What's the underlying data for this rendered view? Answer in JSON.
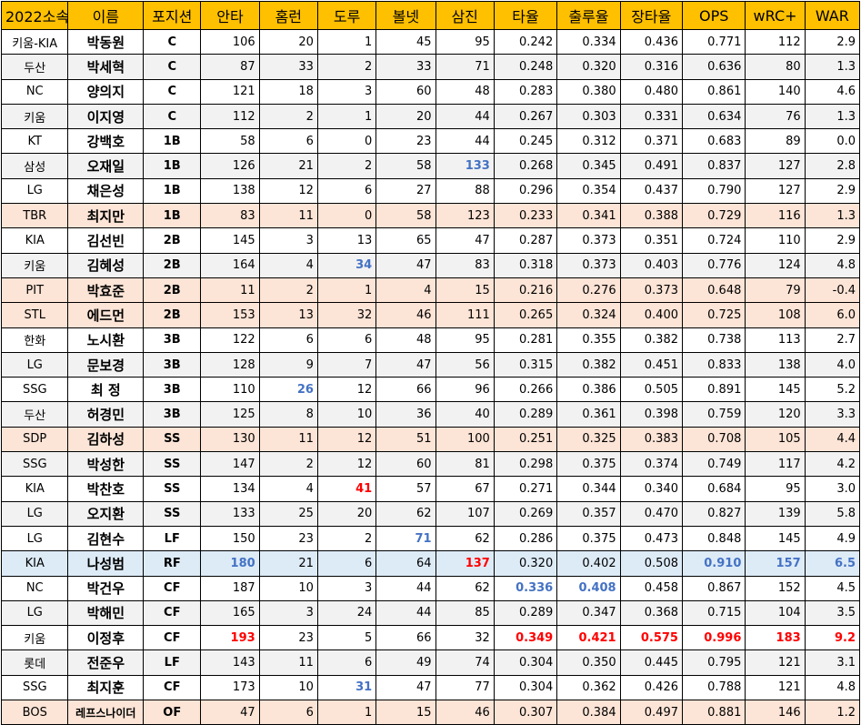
{
  "colors": {
    "header_bg": "#ffc000",
    "white": "#ffffff",
    "gray": "#f2f2f2",
    "pink": "#fce4d6",
    "blue_row": "#ddebf7",
    "blue_text": "#4472c4",
    "red_text": "#ff0000"
  },
  "headers": [
    "2022소속",
    "이름",
    "포지션",
    "안타",
    "홈런",
    "도루",
    "볼넷",
    "삼진",
    "타율",
    "출루율",
    "장타율",
    "OPS",
    "wRC+",
    "WAR"
  ],
  "rows": [
    {
      "bg": "white",
      "cells": [
        "키움-KIA",
        "박동원",
        "C",
        "106",
        "20",
        "1",
        "45",
        "95",
        "0.242",
        "0.334",
        "0.436",
        "0.771",
        "112",
        "2.9"
      ],
      "hl": {}
    },
    {
      "bg": "gray",
      "cells": [
        "두산",
        "박세혁",
        "C",
        "87",
        "33",
        "2",
        "33",
        "71",
        "0.248",
        "0.320",
        "0.316",
        "0.636",
        "80",
        "1.3"
      ],
      "hl": {}
    },
    {
      "bg": "white",
      "cells": [
        "NC",
        "양의지",
        "C",
        "121",
        "18",
        "3",
        "60",
        "48",
        "0.283",
        "0.380",
        "0.480",
        "0.861",
        "140",
        "4.6"
      ],
      "hl": {}
    },
    {
      "bg": "gray",
      "cells": [
        "키움",
        "이지영",
        "C",
        "112",
        "2",
        "1",
        "20",
        "44",
        "0.267",
        "0.303",
        "0.331",
        "0.634",
        "76",
        "1.3"
      ],
      "hl": {}
    },
    {
      "bg": "white",
      "cells": [
        "KT",
        "강백호",
        "1B",
        "58",
        "6",
        "0",
        "23",
        "44",
        "0.245",
        "0.312",
        "0.371",
        "0.683",
        "89",
        "0.0"
      ],
      "hl": {}
    },
    {
      "bg": "gray",
      "cells": [
        "삼성",
        "오재일",
        "1B",
        "126",
        "21",
        "2",
        "58",
        "133",
        "0.268",
        "0.345",
        "0.491",
        "0.837",
        "127",
        "2.8"
      ],
      "hl": {
        "7": "blue"
      }
    },
    {
      "bg": "white",
      "cells": [
        "LG",
        "채은성",
        "1B",
        "138",
        "12",
        "6",
        "27",
        "88",
        "0.296",
        "0.354",
        "0.437",
        "0.790",
        "127",
        "2.9"
      ],
      "hl": {}
    },
    {
      "bg": "pink",
      "cells": [
        "TBR",
        "최지만",
        "1B",
        "83",
        "11",
        "0",
        "58",
        "123",
        "0.233",
        "0.341",
        "0.388",
        "0.729",
        "116",
        "1.3"
      ],
      "hl": {}
    },
    {
      "bg": "white",
      "cells": [
        "KIA",
        "김선빈",
        "2B",
        "145",
        "3",
        "13",
        "65",
        "47",
        "0.287",
        "0.373",
        "0.351",
        "0.724",
        "110",
        "2.9"
      ],
      "hl": {}
    },
    {
      "bg": "gray",
      "cells": [
        "키움",
        "김혜성",
        "2B",
        "164",
        "4",
        "34",
        "47",
        "83",
        "0.318",
        "0.373",
        "0.403",
        "0.776",
        "124",
        "4.8"
      ],
      "hl": {
        "5": "blue"
      }
    },
    {
      "bg": "pink",
      "cells": [
        "PIT",
        "박효준",
        "2B",
        "11",
        "2",
        "1",
        "4",
        "15",
        "0.216",
        "0.276",
        "0.373",
        "0.648",
        "79",
        "-0.4"
      ],
      "hl": {}
    },
    {
      "bg": "pink",
      "cells": [
        "STL",
        "에드먼",
        "2B",
        "153",
        "13",
        "32",
        "46",
        "111",
        "0.265",
        "0.324",
        "0.400",
        "0.725",
        "108",
        "6.0"
      ],
      "hl": {}
    },
    {
      "bg": "white",
      "cells": [
        "한화",
        "노시환",
        "3B",
        "122",
        "6",
        "6",
        "48",
        "95",
        "0.281",
        "0.355",
        "0.382",
        "0.738",
        "113",
        "2.7"
      ],
      "hl": {}
    },
    {
      "bg": "gray",
      "cells": [
        "LG",
        "문보경",
        "3B",
        "128",
        "9",
        "7",
        "47",
        "56",
        "0.315",
        "0.382",
        "0.451",
        "0.833",
        "138",
        "4.0"
      ],
      "hl": {}
    },
    {
      "bg": "white",
      "cells": [
        "SSG",
        "최 정",
        "3B",
        "110",
        "26",
        "12",
        "66",
        "96",
        "0.266",
        "0.386",
        "0.505",
        "0.891",
        "145",
        "5.2"
      ],
      "hl": {
        "4": "blue"
      }
    },
    {
      "bg": "gray",
      "cells": [
        "두산",
        "허경민",
        "3B",
        "125",
        "8",
        "10",
        "36",
        "40",
        "0.289",
        "0.361",
        "0.398",
        "0.759",
        "120",
        "3.3"
      ],
      "hl": {}
    },
    {
      "bg": "pink",
      "cells": [
        "SDP",
        "김하성",
        "SS",
        "130",
        "11",
        "12",
        "51",
        "100",
        "0.251",
        "0.325",
        "0.383",
        "0.708",
        "105",
        "4.4"
      ],
      "hl": {}
    },
    {
      "bg": "gray",
      "cells": [
        "SSG",
        "박성한",
        "SS",
        "147",
        "2",
        "12",
        "60",
        "81",
        "0.298",
        "0.375",
        "0.374",
        "0.749",
        "117",
        "4.2"
      ],
      "hl": {}
    },
    {
      "bg": "white",
      "cells": [
        "KIA",
        "박찬호",
        "SS",
        "134",
        "4",
        "41",
        "57",
        "67",
        "0.271",
        "0.344",
        "0.340",
        "0.684",
        "95",
        "3.0"
      ],
      "hl": {
        "5": "red"
      }
    },
    {
      "bg": "gray",
      "cells": [
        "LG",
        "오지환",
        "SS",
        "133",
        "25",
        "20",
        "62",
        "107",
        "0.269",
        "0.357",
        "0.470",
        "0.827",
        "139",
        "5.8"
      ],
      "hl": {}
    },
    {
      "bg": "white",
      "cells": [
        "LG",
        "김현수",
        "LF",
        "150",
        "23",
        "2",
        "71",
        "62",
        "0.286",
        "0.375",
        "0.473",
        "0.848",
        "145",
        "4.9"
      ],
      "hl": {
        "6": "blue"
      }
    },
    {
      "bg": "blue",
      "cells": [
        "KIA",
        "나성범",
        "RF",
        "180",
        "21",
        "6",
        "64",
        "137",
        "0.320",
        "0.402",
        "0.508",
        "0.910",
        "157",
        "6.5"
      ],
      "hl": {
        "3": "blue",
        "7": "red",
        "11": "blue",
        "12": "blue",
        "13": "blue"
      }
    },
    {
      "bg": "white",
      "cells": [
        "NC",
        "박건우",
        "CF",
        "187",
        "10",
        "3",
        "44",
        "62",
        "0.336",
        "0.408",
        "0.458",
        "0.867",
        "152",
        "4.5"
      ],
      "hl": {
        "8": "blue",
        "9": "blue"
      }
    },
    {
      "bg": "gray",
      "cells": [
        "LG",
        "박해민",
        "CF",
        "165",
        "3",
        "24",
        "44",
        "85",
        "0.289",
        "0.347",
        "0.368",
        "0.715",
        "104",
        "3.5"
      ],
      "hl": {}
    },
    {
      "bg": "white",
      "cells": [
        "키움",
        "이정후",
        "CF",
        "193",
        "23",
        "5",
        "66",
        "32",
        "0.349",
        "0.421",
        "0.575",
        "0.996",
        "183",
        "9.2"
      ],
      "hl": {
        "3": "red",
        "8": "red",
        "9": "red",
        "10": "red",
        "11": "red",
        "12": "red",
        "13": "red"
      }
    },
    {
      "bg": "gray",
      "cells": [
        "롯데",
        "전준우",
        "LF",
        "143",
        "11",
        "6",
        "49",
        "74",
        "0.304",
        "0.350",
        "0.445",
        "0.795",
        "121",
        "3.1"
      ],
      "hl": {}
    },
    {
      "bg": "white",
      "cells": [
        "SSG",
        "최지훈",
        "CF",
        "173",
        "10",
        "31",
        "47",
        "77",
        "0.304",
        "0.362",
        "0.426",
        "0.788",
        "121",
        "4.8"
      ],
      "hl": {
        "5": "blue"
      }
    },
    {
      "bg": "pink",
      "cells": [
        "BOS",
        "레프스나이더",
        "OF",
        "47",
        "6",
        "1",
        "15",
        "46",
        "0.307",
        "0.384",
        "0.497",
        "0.881",
        "146",
        "1.2"
      ],
      "hl": {}
    }
  ]
}
